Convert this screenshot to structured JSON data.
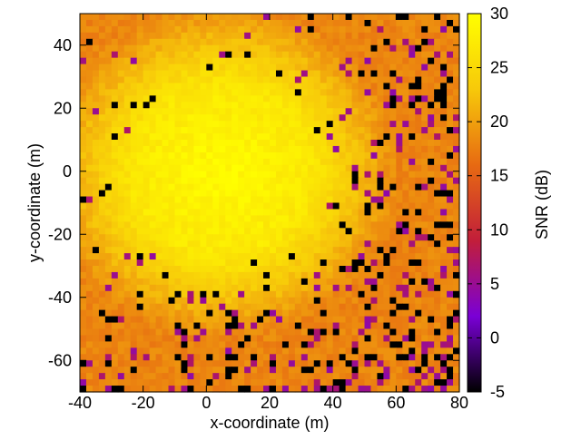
{
  "chart_data": {
    "type": "heatmap",
    "title": "",
    "xlabel": "x-coordinate (m)",
    "ylabel": "y-coordinate (m)",
    "xlim": [
      -40,
      80
    ],
    "ylim": [
      -70,
      50
    ],
    "x_ticks": [
      -40,
      -20,
      0,
      20,
      40,
      60,
      80
    ],
    "y_ticks": [
      -60,
      -40,
      -20,
      0,
      20,
      40
    ],
    "colorbar": {
      "label": "SNR (dB)",
      "range": [
        -5,
        30
      ],
      "ticks": [
        -5,
        0,
        5,
        10,
        15,
        20,
        25,
        30
      ]
    },
    "grid": false,
    "field": {
      "grid_cells": [
        60,
        60
      ],
      "peak": {
        "x": 5,
        "y": 0,
        "snr_db": 29.5
      },
      "edge_snr_db": 18,
      "low_cells_note": "scattered outlier cells near -5 dB (black) and ~5 dB (purple), denser toward the right and bottom edges"
    },
    "colormap": [
      "#000000",
      "#7a00d6",
      "#c21e3a",
      "#e76a12",
      "#f7c90a",
      "#ffff00"
    ]
  }
}
